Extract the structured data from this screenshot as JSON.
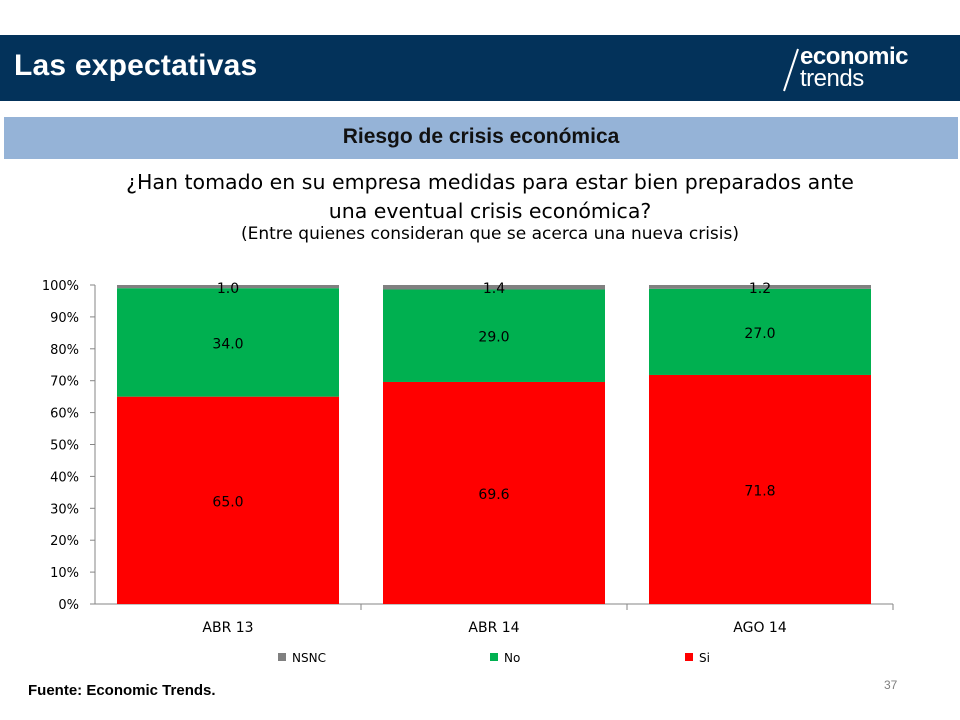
{
  "header": {
    "title": "Las expectativas",
    "logo_top": "economic",
    "logo_bottom": "trends"
  },
  "section": {
    "title": "Riesgo de crisis económica"
  },
  "question": {
    "line1": "¿Han tomado en su empresa medidas para estar bien preparados ante",
    "line2": "una eventual crisis económica?",
    "note": "(Entre quienes consideran que se acerca una nueva crisis)"
  },
  "chart_data": {
    "type": "bar",
    "stacked": true,
    "categories": [
      "ABR 13",
      "ABR 14",
      "AGO 14"
    ],
    "series": [
      {
        "name": "Si",
        "color": "#ff0000",
        "values": [
          65.0,
          69.6,
          71.8
        ],
        "labels": [
          "65.0",
          "69.6",
          "71.8"
        ]
      },
      {
        "name": "No",
        "color": "#00b050",
        "values": [
          34.0,
          29.0,
          27.0
        ],
        "labels": [
          "34.0",
          "29.0",
          "27.0"
        ]
      },
      {
        "name": "NSNC",
        "color": "#808080",
        "values": [
          1.0,
          1.4,
          1.2
        ],
        "labels": [
          "1.0",
          "1.4",
          "1.2"
        ]
      }
    ],
    "legend_order": [
      "NSNC",
      "No",
      "Si"
    ],
    "y_ticks": [
      "0%",
      "10%",
      "20%",
      "30%",
      "40%",
      "50%",
      "60%",
      "70%",
      "80%",
      "90%",
      "100%"
    ],
    "ylim": [
      0,
      100
    ],
    "legend_position": "bottom",
    "grid": false
  },
  "footer": {
    "source": "Fuente: Economic Trends.",
    "page_number": "37"
  }
}
